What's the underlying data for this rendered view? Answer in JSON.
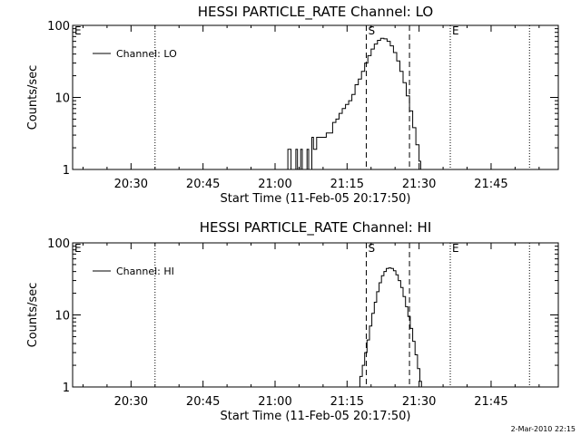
{
  "footer": {
    "timestamp": "2-Mar-2010 22:15"
  },
  "chart_data": [
    {
      "type": "line",
      "title": "HESSI PARTICLE_RATE Channel: LO",
      "xlabel": "Start Time (11-Feb-05 20:17:50)",
      "ylabel": "Counts/sec",
      "yscale": "log",
      "ylim": [
        1,
        100
      ],
      "xlim": [
        "20:17:50",
        "21:59:00"
      ],
      "x_ticks": [
        "20:30",
        "20:45",
        "21:00",
        "21:15",
        "21:30",
        "21:45"
      ],
      "y_ticks": [
        "1",
        "10",
        "100"
      ],
      "legend": {
        "label": "Channel: LO",
        "position": "top-left"
      },
      "markers": [
        {
          "label": "E",
          "time": "20:17:50",
          "style": "dotted"
        },
        {
          "label": "",
          "time": "20:35:00",
          "style": "dotted"
        },
        {
          "label": "S",
          "time": "21:19:00",
          "style": "dashed"
        },
        {
          "label": "",
          "time": "21:28:00",
          "style": "dashed"
        },
        {
          "label": "E",
          "time": "21:36:30",
          "style": "dotted"
        },
        {
          "label": "",
          "time": "21:53:00",
          "style": "dotted"
        }
      ],
      "series": [
        {
          "name": "Channel: LO",
          "x": [
            "21:02:20",
            "21:02:40",
            "21:03:00",
            "21:03:20",
            "21:03:40",
            "21:04:00",
            "21:04:20",
            "21:04:40",
            "21:05:00",
            "21:05:20",
            "21:05:40",
            "21:06:20",
            "21:06:40",
            "21:07:00",
            "21:07:20",
            "21:07:40",
            "21:08:00",
            "21:08:40",
            "21:09:20",
            "21:10:00",
            "21:10:40",
            "21:11:20",
            "21:12:00",
            "21:12:40",
            "21:13:20",
            "21:14:00",
            "21:14:40",
            "21:15:20",
            "21:16:00",
            "21:16:40",
            "21:17:20",
            "21:18:00",
            "21:18:40",
            "21:19:20",
            "21:20:00",
            "21:20:40",
            "21:21:20",
            "21:22:00",
            "21:22:40",
            "21:23:20",
            "21:24:00",
            "21:24:40",
            "21:25:20",
            "21:26:00",
            "21:26:40",
            "21:27:20",
            "21:28:00",
            "21:28:40",
            "21:29:20",
            "21:30:00",
            "21:30:20"
          ],
          "y": [
            1,
            1.9,
            1.9,
            1,
            1,
            1,
            1.9,
            1,
            1,
            1.9,
            1,
            1,
            1.9,
            1,
            1,
            2.8,
            1.9,
            2.8,
            2.8,
            2.8,
            3.2,
            3.2,
            4.5,
            5,
            6,
            7,
            8,
            9,
            11,
            15,
            18,
            23,
            30,
            38,
            47,
            55,
            62,
            66,
            65,
            60,
            52,
            42,
            32,
            23,
            16,
            10.5,
            6.5,
            3.8,
            2.2,
            1.3,
            1
          ]
        }
      ]
    },
    {
      "type": "line",
      "title": "HESSI PARTICLE_RATE Channel: HI",
      "xlabel": "Start Time (11-Feb-05 20:17:50)",
      "ylabel": "Counts/sec",
      "yscale": "log",
      "ylim": [
        1,
        100
      ],
      "xlim": [
        "20:17:50",
        "21:59:00"
      ],
      "x_ticks": [
        "20:30",
        "20:45",
        "21:00",
        "21:15",
        "21:30",
        "21:45"
      ],
      "y_ticks": [
        "1",
        "10",
        "100"
      ],
      "legend": {
        "label": "Channel: HI",
        "position": "top-left"
      },
      "markers": [
        {
          "label": "E",
          "time": "20:17:50",
          "style": "dotted"
        },
        {
          "label": "",
          "time": "20:35:00",
          "style": "dotted"
        },
        {
          "label": "S",
          "time": "21:19:00",
          "style": "dashed"
        },
        {
          "label": "",
          "time": "21:28:00",
          "style": "dashed"
        },
        {
          "label": "E",
          "time": "21:36:30",
          "style": "dotted"
        },
        {
          "label": "",
          "time": "21:53:00",
          "style": "dotted"
        }
      ],
      "series": [
        {
          "name": "Channel: HI",
          "x": [
            "21:17:10",
            "21:17:40",
            "21:18:10",
            "21:18:40",
            "21:19:10",
            "21:19:40",
            "21:20:10",
            "21:20:40",
            "21:21:10",
            "21:21:40",
            "21:22:10",
            "21:22:40",
            "21:23:10",
            "21:23:40",
            "21:24:10",
            "21:24:40",
            "21:25:10",
            "21:25:40",
            "21:26:10",
            "21:26:40",
            "21:27:10",
            "21:27:40",
            "21:28:10",
            "21:28:40",
            "21:29:10",
            "21:29:40",
            "21:30:10",
            "21:30:30"
          ],
          "y": [
            1,
            1.4,
            2,
            3,
            4.5,
            7,
            10.5,
            15,
            21,
            28,
            35,
            40,
            44,
            45,
            44,
            41,
            36,
            30,
            24,
            18,
            13,
            9.5,
            6.5,
            4.3,
            2.8,
            1.8,
            1.2,
            1
          ]
        }
      ]
    }
  ]
}
